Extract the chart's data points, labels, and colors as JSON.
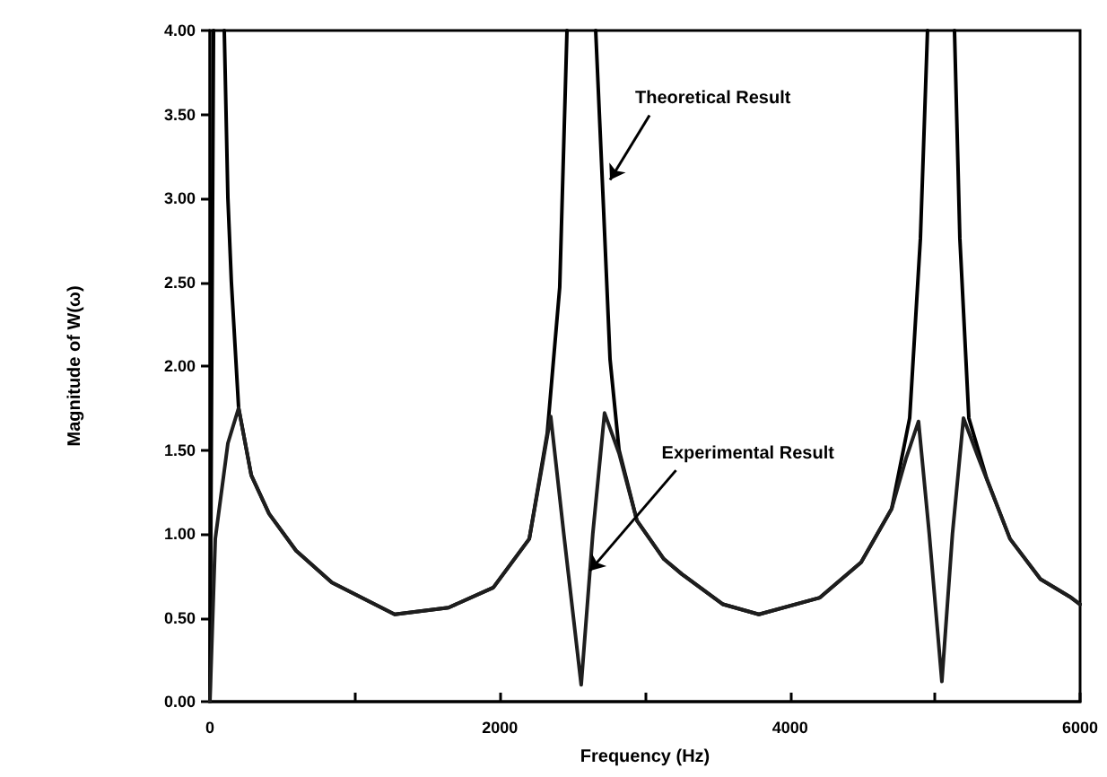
{
  "chart_data": {
    "type": "line",
    "xlabel": "Frequency (Hz)",
    "ylabel": "Magnitude of W(ω)",
    "xlim": [
      0,
      6000
    ],
    "ylim": [
      0,
      4
    ],
    "xticks": [
      0,
      {
        "value": 1000,
        "label": null
      },
      2000,
      {
        "value": 3000,
        "label": null
      },
      4000,
      {
        "value": 5000,
        "label": null
      },
      6000
    ],
    "yticks": [
      {
        "value": 0,
        "label": "0.00"
      },
      {
        "value": 0.5,
        "label": "0.50"
      },
      {
        "value": 1,
        "label": "1.00"
      },
      {
        "value": 1.5,
        "label": "1.50"
      },
      {
        "value": 2,
        "label": "2.00"
      },
      {
        "value": 2.5,
        "label": "2.50"
      },
      {
        "value": 3,
        "label": "3.00"
      },
      {
        "value": 3.5,
        "label": "3.50"
      },
      {
        "value": 4,
        "label": "4.00"
      }
    ],
    "grid": false,
    "marker": "none",
    "line_style": "solid",
    "series": [
      {
        "color": "#000000",
        "x": [
          0,
          25,
          60,
          99,
          124,
          148,
          198,
          285,
          408,
          594,
          841,
          1274,
          1645,
          1954,
          2202,
          2326,
          2412,
          2462,
          2560,
          2660,
          2709,
          2759,
          2821,
          2944,
          3130,
          3254,
          3538,
          3785,
          4206,
          4490,
          4701,
          4825,
          4899,
          4948,
          5040,
          5134,
          5171,
          5233,
          5356,
          5517,
          5727,
          5938,
          6000
        ],
        "values": [
          0,
          4,
          null,
          4,
          3.0,
          2.5,
          1.75,
          1.35,
          1.12,
          0.9,
          0.71,
          0.52,
          0.56,
          0.68,
          0.97,
          1.6,
          2.47,
          4,
          null,
          4,
          3.04,
          2.04,
          1.5,
          1.08,
          0.85,
          0.76,
          0.58,
          0.52,
          0.62,
          0.83,
          1.15,
          1.69,
          2.76,
          4,
          null,
          4,
          2.76,
          1.69,
          1.33,
          0.97,
          0.73,
          0.62,
          0.58
        ]
      },
      {
        "color": "#1e1e1e",
        "x": [
          0,
          37,
          124,
          198,
          285,
          408,
          594,
          841,
          1274,
          1645,
          1954,
          2202,
          2290,
          2350,
          2440,
          2560,
          2640,
          2721,
          2821,
          2944,
          3130,
          3254,
          3538,
          3785,
          4206,
          4490,
          4701,
          4800,
          4886,
          4960,
          5047,
          5120,
          5196,
          5300,
          5517,
          5727,
          5938,
          6000
        ],
        "values": [
          0,
          0.97,
          1.54,
          1.75,
          1.35,
          1.12,
          0.9,
          0.71,
          0.52,
          0.56,
          0.68,
          0.97,
          1.4,
          1.7,
          1.0,
          0.1,
          1.0,
          1.72,
          1.48,
          1.08,
          0.85,
          0.76,
          0.58,
          0.52,
          0.62,
          0.83,
          1.15,
          1.45,
          1.67,
          1.0,
          0.12,
          1.0,
          1.69,
          1.45,
          0.97,
          0.73,
          0.62,
          0.58
        ]
      }
    ],
    "annotations": [
      {
        "text": "Theoretical Result",
        "x": 2759,
        "y": 3.11
      },
      {
        "text": "Experimental Result",
        "x": 2620,
        "y": 0.78
      }
    ]
  }
}
